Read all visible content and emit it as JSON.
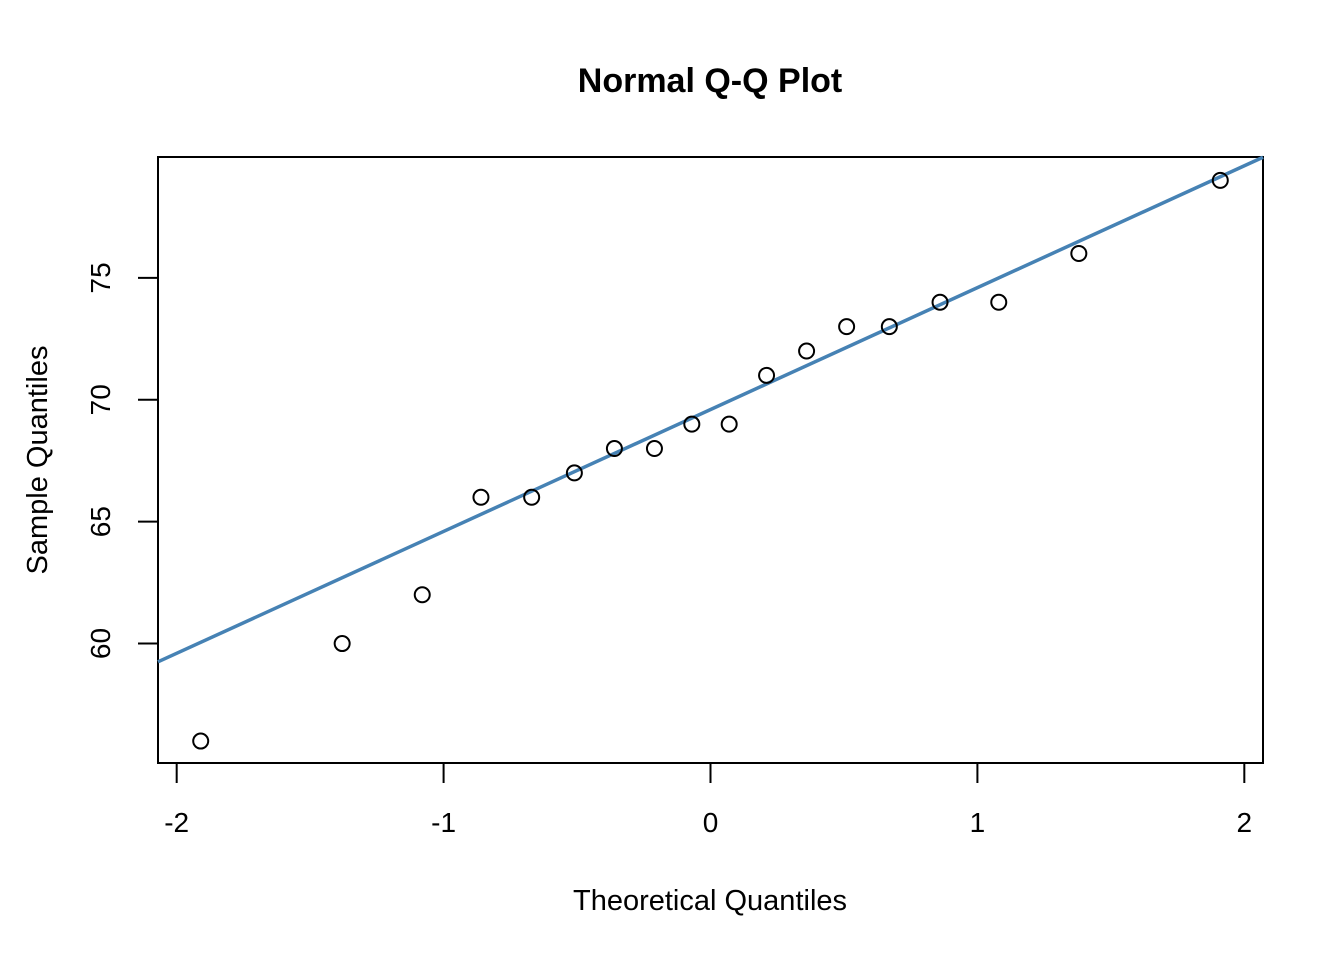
{
  "chart_data": {
    "type": "scatter",
    "title": "Normal Q-Q Plot",
    "xlabel": "Theoretical Quantiles",
    "ylabel": "Sample Quantiles",
    "xlim": [
      -2.07,
      2.07
    ],
    "ylim": [
      55.1,
      79.96
    ],
    "xticks": [
      -2,
      -1,
      0,
      1,
      2
    ],
    "xtick_labels": [
      "-2",
      "-1",
      "0",
      "1",
      "2"
    ],
    "yticks": [
      60,
      65,
      70,
      75
    ],
    "ytick_labels": [
      "60",
      "65",
      "70",
      "75"
    ],
    "grid": false,
    "points": {
      "x": [
        -1.91,
        -1.38,
        -1.08,
        -0.86,
        -0.67,
        -0.51,
        -0.36,
        -0.21,
        -0.07,
        0.07,
        0.21,
        0.36,
        0.51,
        0.67,
        0.86,
        1.08,
        1.38,
        1.91
      ],
      "y": [
        56,
        60,
        62,
        66,
        66,
        67,
        68,
        68,
        69,
        69,
        71,
        72,
        73,
        73,
        74,
        74,
        76,
        79
      ]
    },
    "reference_line": {
      "intercept": 69.6,
      "slope": 5.0,
      "color": "#4682B4"
    }
  }
}
